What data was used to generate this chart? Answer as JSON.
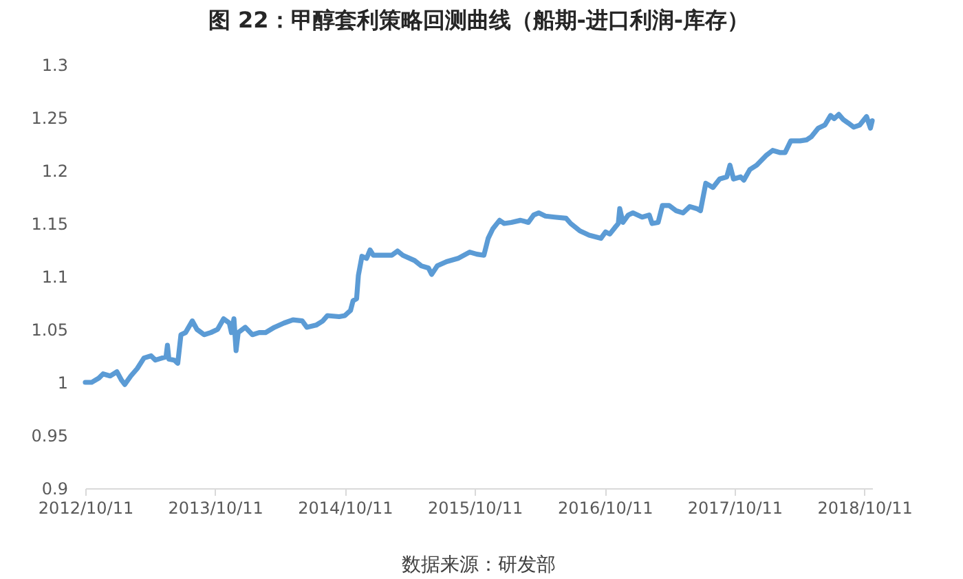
{
  "chart_data": {
    "type": "line",
    "title": "图 22：甲醇套利策略回测曲线（船期-进口利润-库存）",
    "annotations": [
      "数据来源：研发部"
    ],
    "x": [
      "2012-10-11",
      "2012-10-29",
      "2012-11-18",
      "2012-11-30",
      "2012-12-20",
      "2013-01-08",
      "2013-01-21",
      "2013-01-30",
      "2013-02-16",
      "2013-03-06",
      "2013-03-25",
      "2013-04-14",
      "2013-04-26",
      "2013-05-15",
      "2013-05-26",
      "2013-05-30",
      "2013-06-03",
      "2013-06-18",
      "2013-06-28",
      "2013-07-07",
      "2013-07-20",
      "2013-08-08",
      "2013-08-21",
      "2013-09-10",
      "2013-09-29",
      "2013-10-18",
      "2013-11-04",
      "2013-11-20",
      "2013-11-26",
      "2013-12-03",
      "2013-12-09",
      "2013-12-15",
      "2014-01-04",
      "2014-01-24",
      "2014-02-12",
      "2014-03-02",
      "2014-03-27",
      "2014-04-23",
      "2014-05-18",
      "2014-06-13",
      "2014-06-26",
      "2014-07-22",
      "2014-08-10",
      "2014-08-23",
      "2014-09-25",
      "2014-10-11",
      "2014-10-27",
      "2014-11-03",
      "2014-11-13",
      "2014-11-18",
      "2014-11-28",
      "2014-12-11",
      "2014-12-21",
      "2014-12-30",
      "2015-02-01",
      "2015-02-20",
      "2015-03-08",
      "2015-03-23",
      "2015-04-25",
      "2015-05-14",
      "2015-06-03",
      "2015-06-12",
      "2015-06-28",
      "2015-07-24",
      "2015-08-25",
      "2015-09-27",
      "2015-10-17",
      "2015-11-06",
      "2015-11-18",
      "2015-12-01",
      "2015-12-20",
      "2016-01-02",
      "2016-01-22",
      "2016-02-17",
      "2016-03-10",
      "2016-03-25",
      "2016-04-08",
      "2016-04-27",
      "2016-05-23",
      "2016-06-24",
      "2016-07-07",
      "2016-08-02",
      "2016-08-28",
      "2016-09-30",
      "2016-10-13",
      "2016-10-25",
      "2016-11-08",
      "2016-11-18",
      "2016-11-22",
      "2016-12-01",
      "2016-12-16",
      "2016-12-29",
      "2017-01-24",
      "2017-02-13",
      "2017-02-21",
      "2017-03-10",
      "2017-03-22",
      "2017-04-10",
      "2017-04-30",
      "2017-05-19",
      "2017-06-07",
      "2017-06-27",
      "2017-07-07",
      "2017-07-22",
      "2017-08-11",
      "2017-08-30",
      "2017-09-19",
      "2017-09-28",
      "2017-10-08",
      "2017-10-28",
      "2017-11-06",
      "2017-11-23",
      "2017-12-12",
      "2018-01-07",
      "2018-01-26",
      "2018-02-15",
      "2018-03-02",
      "2018-03-18",
      "2018-04-13",
      "2018-05-02",
      "2018-05-15",
      "2018-06-03",
      "2018-06-22",
      "2018-07-08",
      "2018-07-18",
      "2018-07-31",
      "2018-08-13",
      "2018-08-26",
      "2018-09-11",
      "2018-09-28",
      "2018-10-17",
      "2018-10-28",
      "2018-11-02"
    ],
    "series": [
      {
        "color": "#5b9bd5",
        "values": [
          1.0,
          1.0,
          1.004,
          1.008,
          1.006,
          1.01,
          1.002,
          0.998,
          1.006,
          1.013,
          1.023,
          1.025,
          1.021,
          1.023,
          1.024,
          1.035,
          1.022,
          1.021,
          1.018,
          1.045,
          1.047,
          1.058,
          1.05,
          1.045,
          1.047,
          1.05,
          1.06,
          1.056,
          1.047,
          1.06,
          1.03,
          1.047,
          1.052,
          1.045,
          1.047,
          1.047,
          1.052,
          1.056,
          1.059,
          1.058,
          1.052,
          1.054,
          1.058,
          1.063,
          1.062,
          1.063,
          1.068,
          1.077,
          1.079,
          1.101,
          1.119,
          1.117,
          1.125,
          1.12,
          1.12,
          1.12,
          1.124,
          1.12,
          1.115,
          1.11,
          1.108,
          1.102,
          1.11,
          1.114,
          1.117,
          1.123,
          1.121,
          1.12,
          1.136,
          1.145,
          1.153,
          1.15,
          1.151,
          1.153,
          1.151,
          1.158,
          1.16,
          1.157,
          1.156,
          1.155,
          1.15,
          1.143,
          1.139,
          1.136,
          1.142,
          1.14,
          1.146,
          1.15,
          1.164,
          1.151,
          1.158,
          1.16,
          1.156,
          1.158,
          1.15,
          1.151,
          1.167,
          1.167,
          1.162,
          1.16,
          1.166,
          1.164,
          1.162,
          1.188,
          1.184,
          1.192,
          1.194,
          1.205,
          1.192,
          1.194,
          1.191,
          1.201,
          1.205,
          1.214,
          1.219,
          1.217,
          1.217,
          1.228,
          1.228,
          1.229,
          1.232,
          1.24,
          1.243,
          1.252,
          1.249,
          1.253,
          1.248,
          1.245,
          1.241,
          1.243,
          1.251,
          1.24,
          1.247
        ]
      }
    ],
    "xlim": [
      "2012-10-11",
      "2018-11-02"
    ],
    "xticks": [
      {
        "value": "2012-10-11",
        "label": "2012/10/11"
      },
      {
        "value": "2013-10-11",
        "label": "2013/10/11"
      },
      {
        "value": "2014-10-11",
        "label": "2014/10/11"
      },
      {
        "value": "2015-10-11",
        "label": "2015/10/11"
      },
      {
        "value": "2016-10-11",
        "label": "2016/10/11"
      },
      {
        "value": "2017-10-11",
        "label": "2017/10/11"
      },
      {
        "value": "2018-10-11",
        "label": "2018/10/11"
      }
    ],
    "ylim": [
      0.9,
      1.3
    ],
    "yticks": [
      0.9,
      0.95,
      1,
      1.05,
      1.1,
      1.15,
      1.2,
      1.25,
      1.3
    ]
  }
}
